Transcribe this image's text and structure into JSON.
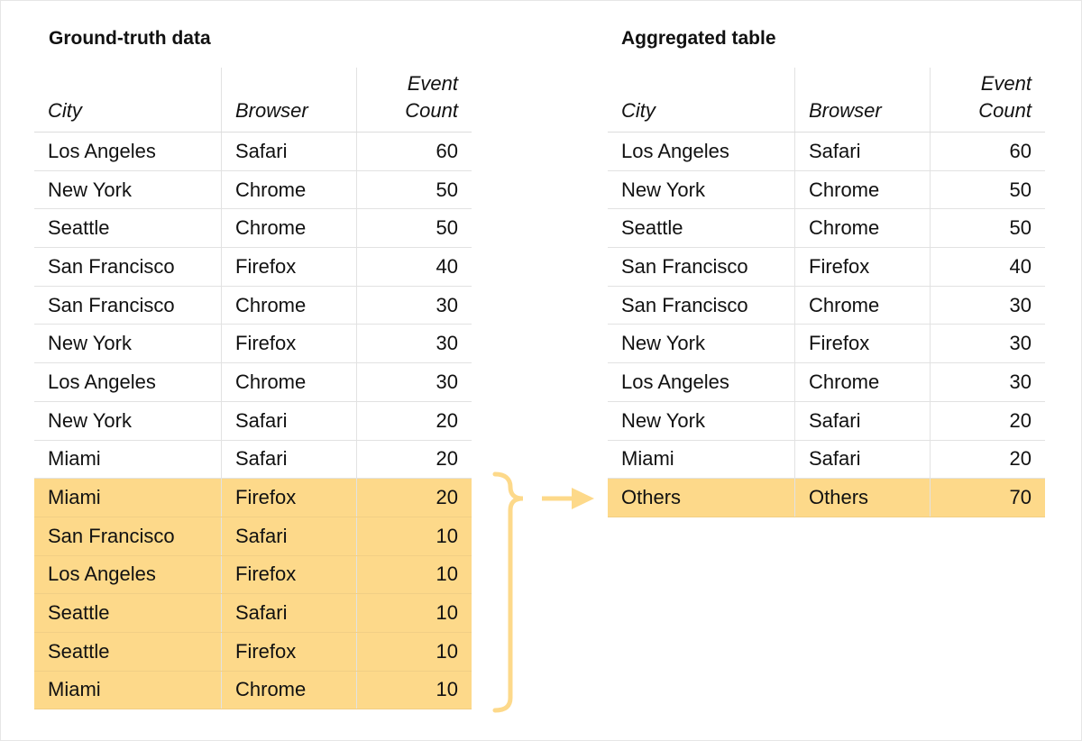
{
  "accent_color": "#fdd98a",
  "left": {
    "title": "Ground-truth data",
    "headers": [
      "City",
      "Browser",
      "Event\nCount"
    ],
    "rows": [
      {
        "city": "Los Angeles",
        "browser": "Safari",
        "count": "60",
        "highlighted": false
      },
      {
        "city": "New York",
        "browser": "Chrome",
        "count": "50",
        "highlighted": false
      },
      {
        "city": "Seattle",
        "browser": "Chrome",
        "count": "50",
        "highlighted": false
      },
      {
        "city": "San Francisco",
        "browser": "Firefox",
        "count": "40",
        "highlighted": false
      },
      {
        "city": "San Francisco",
        "browser": "Chrome",
        "count": "30",
        "highlighted": false
      },
      {
        "city": "New York",
        "browser": "Firefox",
        "count": "30",
        "highlighted": false
      },
      {
        "city": "Los Angeles",
        "browser": "Chrome",
        "count": "30",
        "highlighted": false
      },
      {
        "city": "New York",
        "browser": "Safari",
        "count": "20",
        "highlighted": false
      },
      {
        "city": "Miami",
        "browser": "Safari",
        "count": "20",
        "highlighted": false
      },
      {
        "city": "Miami",
        "browser": "Firefox",
        "count": "20",
        "highlighted": true
      },
      {
        "city": "San Francisco",
        "browser": "Safari",
        "count": "10",
        "highlighted": true
      },
      {
        "city": "Los Angeles",
        "browser": "Firefox",
        "count": "10",
        "highlighted": true
      },
      {
        "city": "Seattle",
        "browser": "Safari",
        "count": "10",
        "highlighted": true
      },
      {
        "city": "Seattle",
        "browser": "Firefox",
        "count": "10",
        "highlighted": true
      },
      {
        "city": "Miami",
        "browser": "Chrome",
        "count": "10",
        "highlighted": true
      }
    ]
  },
  "right": {
    "title": "Aggregated table",
    "headers": [
      "City",
      "Browser",
      "Event\nCount"
    ],
    "rows": [
      {
        "city": "Los Angeles",
        "browser": "Safari",
        "count": "60",
        "highlighted": false
      },
      {
        "city": "New York",
        "browser": "Chrome",
        "count": "50",
        "highlighted": false
      },
      {
        "city": "Seattle",
        "browser": "Chrome",
        "count": "50",
        "highlighted": false
      },
      {
        "city": "San Francisco",
        "browser": "Firefox",
        "count": "40",
        "highlighted": false
      },
      {
        "city": "San Francisco",
        "browser": "Chrome",
        "count": "30",
        "highlighted": false
      },
      {
        "city": "New York",
        "browser": "Firefox",
        "count": "30",
        "highlighted": false
      },
      {
        "city": "Los Angeles",
        "browser": "Chrome",
        "count": "30",
        "highlighted": false
      },
      {
        "city": "New York",
        "browser": "Safari",
        "count": "20",
        "highlighted": false
      },
      {
        "city": "Miami",
        "browser": "Safari",
        "count": "20",
        "highlighted": false
      },
      {
        "city": "Others",
        "browser": "Others",
        "count": "70",
        "highlighted": true
      }
    ]
  }
}
